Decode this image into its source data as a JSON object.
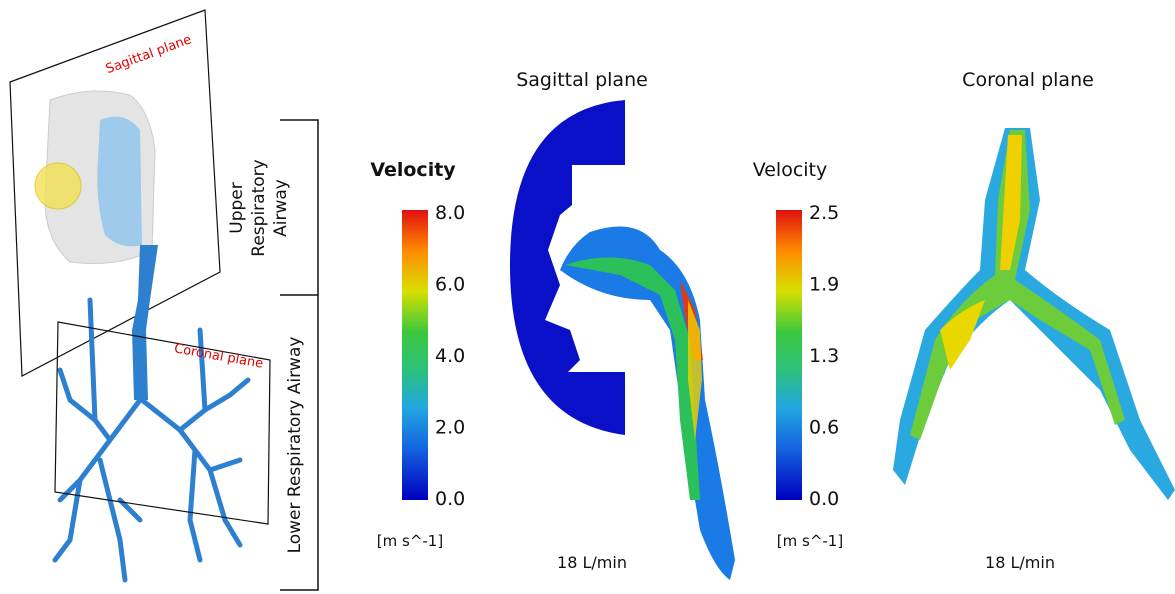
{
  "panel_3d": {
    "sagittal_label": "Sagittal plane",
    "coronal_label": "Coronal plane",
    "upper_label_lines": [
      "Upper",
      "Respiratory",
      "Airway"
    ],
    "lower_label": "Lower Respiratory Airway"
  },
  "sagittal": {
    "title": "Sagittal plane",
    "flow": "18 L/min",
    "colorbar": {
      "title": "Velocity",
      "ticks": [
        "8.0",
        "6.0",
        "4.0",
        "2.0",
        "0.0"
      ],
      "unit": "[m s^-1]"
    }
  },
  "coronal": {
    "title": "Coronal plane",
    "flow": "18 L/min",
    "colorbar": {
      "title": "Velocity",
      "ticks": [
        "2.5",
        "1.9",
        "1.3",
        "0.6",
        "0.0"
      ],
      "unit": "[m s^-1]"
    }
  }
}
